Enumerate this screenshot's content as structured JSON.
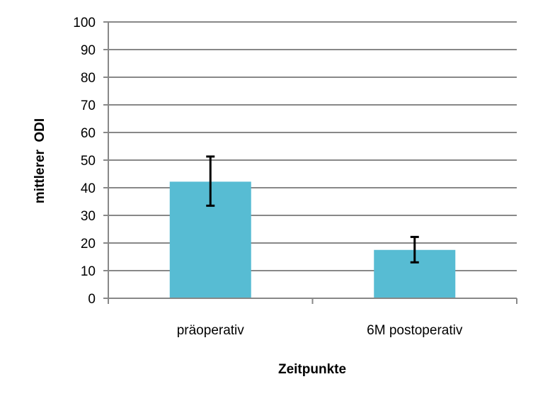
{
  "chart_data": {
    "type": "bar",
    "title": "",
    "xlabel": "Zeitpunkte",
    "ylabel": "mittlerer  ODI",
    "categories": [
      "präoperativ",
      "6M postoperativ"
    ],
    "values": [
      42.2,
      17.5
    ],
    "error_bars": [
      {
        "low": 33.5,
        "high": 51.3
      },
      {
        "low": 13.0,
        "high": 22.2
      }
    ],
    "ylim": [
      0,
      100
    ],
    "yticks": [
      0,
      10,
      20,
      30,
      40,
      50,
      60,
      70,
      80,
      90,
      100
    ],
    "ytick_labels": [
      "0",
      "10",
      "20",
      "30",
      "40",
      "50",
      "60",
      "70",
      "80",
      "90",
      "100"
    ],
    "grid": true,
    "legend": "none",
    "colors": {
      "bar": "#57bcd3",
      "grid": "#888888",
      "axis": "#888888",
      "error": "#000000"
    }
  }
}
